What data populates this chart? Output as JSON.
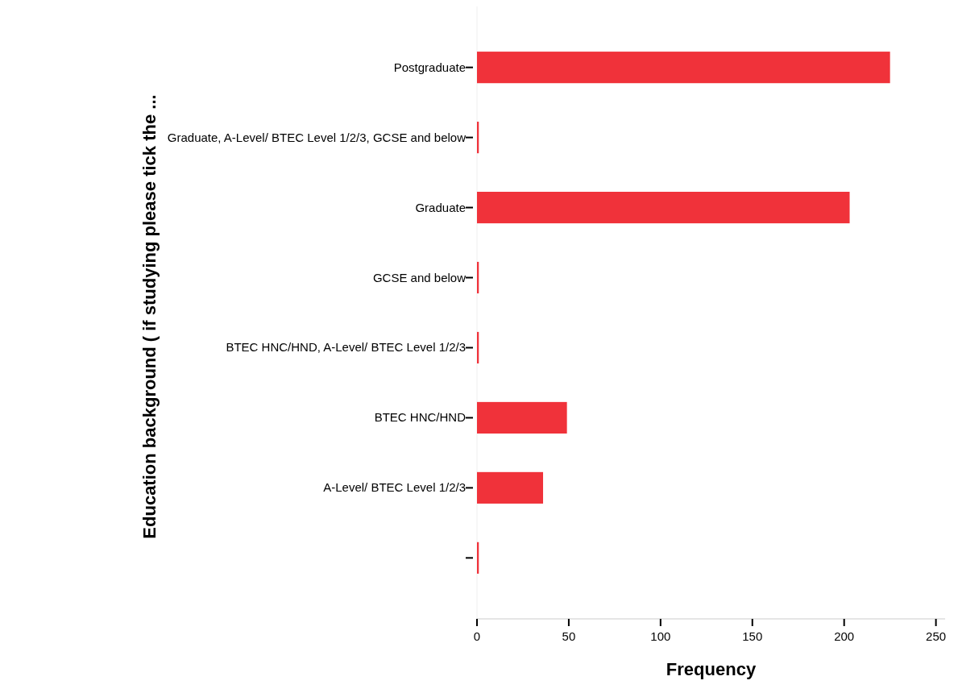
{
  "chart_data": {
    "type": "bar",
    "orientation": "horizontal",
    "xlabel": "Frequency",
    "ylabel": "Education background ( if studying please tick the ...",
    "categories": [
      "Postgraduate",
      "Graduate, A-Level/ BTEC Level 1/2/3, GCSE and below",
      "Graduate",
      "GCSE and below",
      "BTEC HNC/HND, A-Level/ BTEC Level 1/2/3",
      "BTEC HNC/HND",
      "A-Level/ BTEC Level 1/2/3",
      null
    ],
    "values": [
      225,
      1,
      203,
      1,
      1,
      49,
      36,
      1
    ],
    "color": "#f0323a",
    "xlim": [
      0,
      255
    ],
    "xticks": [
      0,
      50,
      100,
      150,
      200,
      250
    ],
    "grid": false
  }
}
